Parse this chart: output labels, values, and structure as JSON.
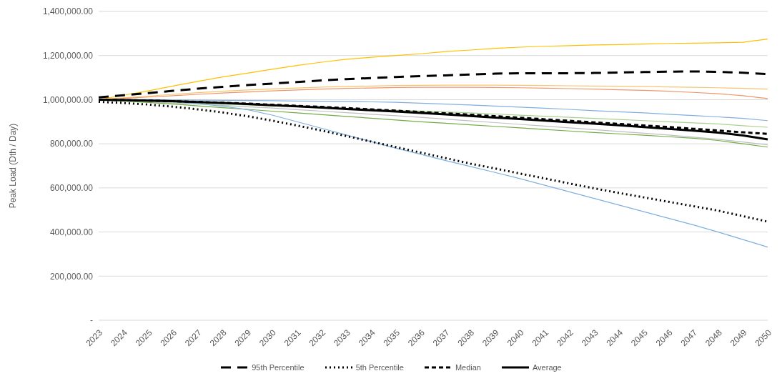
{
  "chart_data": {
    "type": "line",
    "ylabel": "Peak Load (Dth / Day)",
    "categories": [
      "2023",
      "2024",
      "2025",
      "2026",
      "2027",
      "2028",
      "2029",
      "2030",
      "2031",
      "2032",
      "2033",
      "2034",
      "2035",
      "2036",
      "2037",
      "2038",
      "2039",
      "2040",
      "2041",
      "2042",
      "2043",
      "2044",
      "2045",
      "2046",
      "2047",
      "2048",
      "2049",
      "2050"
    ],
    "ylim": [
      0,
      1400000
    ],
    "yticks": [
      {
        "value": 0,
        "label": "-"
      },
      {
        "value": 200000,
        "label": "200,000.00"
      },
      {
        "value": 400000,
        "label": "400,000.00"
      },
      {
        "value": 600000,
        "label": "600,000.00"
      },
      {
        "value": 800000,
        "label": "800,000.00"
      },
      {
        "value": 1000000,
        "label": "1,000,000.00"
      },
      {
        "value": 1200000,
        "label": "1,200,000.00"
      },
      {
        "value": 1400000,
        "label": "1,400,000.00"
      }
    ],
    "grid": "y",
    "legend": "bottom",
    "marker": "none",
    "series": [
      {
        "color": "#ffc000",
        "line_style": "solid",
        "values": [
          1000000,
          1020000,
          1040000,
          1062000,
          1083000,
          1103000,
          1120000,
          1138000,
          1155000,
          1170000,
          1183000,
          1192000,
          1200000,
          1208000,
          1218000,
          1225000,
          1233000,
          1238000,
          1242000,
          1245000,
          1248000,
          1250000,
          1252000,
          1255000,
          1256000,
          1258000,
          1260000,
          1275000
        ]
      },
      {
        "color": "#f8c471",
        "line_style": "solid",
        "values": [
          1000000,
          1008000,
          1016000,
          1024000,
          1032000,
          1038000,
          1044000,
          1049000,
          1053000,
          1057000,
          1060000,
          1062000,
          1064000,
          1065000,
          1066000,
          1066000,
          1066000,
          1065000,
          1064000,
          1063000,
          1062000,
          1061000,
          1060000,
          1058000,
          1056000,
          1054000,
          1051000,
          1048000
        ]
      },
      {
        "color": "#f1956a",
        "line_style": "solid",
        "values": [
          1000000,
          1006000,
          1012000,
          1018000,
          1024000,
          1030000,
          1035000,
          1040000,
          1044000,
          1048000,
          1051000,
          1053000,
          1055000,
          1056000,
          1056000,
          1056000,
          1055000,
          1054000,
          1052000,
          1050000,
          1048000,
          1045000,
          1042000,
          1038000,
          1033000,
          1027000,
          1018000,
          1005000
        ]
      },
      {
        "color": "#7fb0df",
        "line_style": "solid",
        "values": [
          1000000,
          1000000,
          1000000,
          999000,
          998000,
          997000,
          996000,
          995000,
          994000,
          993000,
          992000,
          990000,
          988000,
          984000,
          980000,
          976000,
          971000,
          966000,
          961000,
          956000,
          950000,
          945000,
          940000,
          934000,
          928000,
          922000,
          915000,
          905000
        ]
      },
      {
        "color": "#a9d18e",
        "line_style": "solid",
        "values": [
          1000000,
          996000,
          992000,
          988000,
          984000,
          980000,
          976000,
          972000,
          968000,
          964000,
          960000,
          956000,
          952000,
          948000,
          944000,
          940000,
          935000,
          930000,
          925000,
          920000,
          915000,
          910000,
          905000,
          900000,
          895000,
          890000,
          882000,
          875000
        ]
      },
      {
        "color": "#bfbfbf",
        "line_style": "solid",
        "values": [
          1000000,
          995000,
          990000,
          985000,
          980000,
          974000,
          968000,
          962000,
          955000,
          948000,
          941000,
          934000,
          927000,
          920000,
          912000,
          904000,
          896000,
          888000,
          880000,
          872000,
          864000,
          856000,
          848000,
          840000,
          830000,
          820000,
          808000,
          795000
        ]
      },
      {
        "color": "#70ad47",
        "line_style": "solid",
        "values": [
          1000000,
          994000,
          987000,
          980000,
          972000,
          964000,
          956000,
          948000,
          940000,
          932000,
          924000,
          916000,
          908000,
          900000,
          893000,
          886000,
          879000,
          872000,
          865000,
          858000,
          851000,
          845000,
          839000,
          832000,
          825000,
          815000,
          800000,
          785000
        ]
      },
      {
        "color": "#7fb0df",
        "line_style": "solid",
        "values": [
          1000000,
          998000,
          995000,
          990000,
          982000,
          970000,
          955000,
          930000,
          900000,
          870000,
          840000,
          810000,
          780000,
          752000,
          724000,
          697000,
          670000,
          642000,
          612000,
          582000,
          552000,
          522000,
          492000,
          462000,
          432000,
          400000,
          366000,
          332000
        ]
      },
      {
        "name": "95th Percentile",
        "color": "#000000",
        "line_style": "dashed",
        "values": [
          1010000,
          1020000,
          1030000,
          1040000,
          1050000,
          1058000,
          1066000,
          1073000,
          1080000,
          1087000,
          1093000,
          1098000,
          1103000,
          1107000,
          1110000,
          1114000,
          1118000,
          1120000,
          1120000,
          1120000,
          1121000,
          1123000,
          1125000,
          1127000,
          1128000,
          1126000,
          1122000,
          1116000
        ]
      },
      {
        "name": "5th Percentile",
        "color": "#000000",
        "line_style": "dotted",
        "values": [
          990000,
          985000,
          978000,
          968000,
          956000,
          942000,
          925000,
          905000,
          883000,
          860000,
          835000,
          810000,
          785000,
          760000,
          735000,
          710000,
          688000,
          665000,
          643000,
          620000,
          598000,
          577000,
          557000,
          537000,
          517000,
          497000,
          472000,
          447000
        ]
      },
      {
        "name": "Median",
        "color": "#000000",
        "line_style": "short-dashed",
        "values": [
          1000000,
          998000,
          996000,
          993000,
          990000,
          986000,
          982000,
          977000,
          972000,
          967000,
          962000,
          956000,
          950000,
          944000,
          938000,
          932000,
          925000,
          918000,
          911000,
          904000,
          897000,
          890000,
          883000,
          876000,
          868000,
          860000,
          852000,
          845000
        ]
      },
      {
        "name": "Average",
        "color": "#000000",
        "line_style": "solid",
        "values": [
          1000000,
          998000,
          996000,
          993000,
          989000,
          985000,
          980000,
          975000,
          970000,
          964000,
          958000,
          952000,
          946000,
          940000,
          933000,
          926000,
          919000,
          912000,
          905000,
          898000,
          891000,
          884000,
          876000,
          868000,
          860000,
          851000,
          838000,
          820000
        ]
      }
    ]
  }
}
